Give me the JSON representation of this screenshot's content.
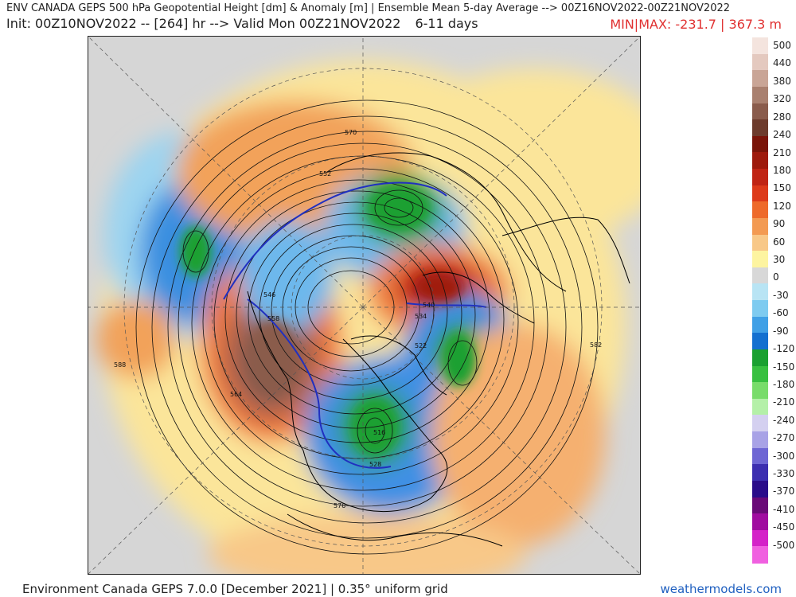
{
  "header": {
    "title": "ENV CANADA GEPS 500 hPa Geopotential Height [dm] & Anomaly [m] | Ensemble Mean 5-day Average --> 00Z16NOV2022-00Z21NOV2022",
    "init": "Init: 00Z10NOV2022 -- [264] hr --> Valid Mon 00Z21NOV2022",
    "range": "6-11 days",
    "minmax": "MIN|MAX: -231.7 | 367.3 m"
  },
  "colorbar": {
    "labels": [
      "500",
      "440",
      "380",
      "320",
      "280",
      "240",
      "210",
      "180",
      "150",
      "120",
      "90",
      "60",
      "30",
      "0",
      "-30",
      "-60",
      "-90",
      "-120",
      "-150",
      "-180",
      "-210",
      "-240",
      "-270",
      "-300",
      "-330",
      "-370",
      "-410",
      "-450",
      "-500"
    ],
    "colors": [
      "#f4e4de",
      "#e4c9bf",
      "#c9a596",
      "#a9806f",
      "#8a5c4c",
      "#6d3b2c",
      "#7a1408",
      "#9e1a0c",
      "#c02414",
      "#dd3a1a",
      "#ee6a2a",
      "#f39a52",
      "#f8c888",
      "#fdf4a0",
      "#d8d8d8",
      "#b8e4f4",
      "#7ecbf0",
      "#40a0e6",
      "#1470d0",
      "#1aa030",
      "#38c040",
      "#78dc6a",
      "#b4f0a8",
      "#d4d0f0",
      "#a8a2e6",
      "#6e66d4",
      "#3c2eb0",
      "#2a0c8a",
      "#6a0a78",
      "#a00ca0",
      "#d422c8",
      "#f060e0"
    ]
  },
  "contours": {
    "labels": [
      "516",
      "522",
      "528",
      "534",
      "540",
      "546",
      "552",
      "558",
      "564",
      "570",
      "576",
      "582",
      "588"
    ]
  },
  "footer": {
    "left": "Environment Canada GEPS 7.0.0 [December 2021] | 0.35° uniform grid",
    "right": "weathermodels.com"
  }
}
